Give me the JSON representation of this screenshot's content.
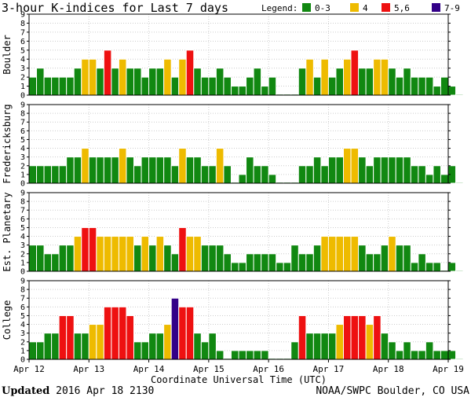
{
  "chart_data": {
    "type": "bar",
    "title": "3-hour K-indices for Last 7 days",
    "legend": {
      "label": "Legend:",
      "entries": [
        {
          "label": "0-3",
          "color": "#118811"
        },
        {
          "label": "4",
          "color": "#eebb00"
        },
        {
          "label": "5,6",
          "color": "#ee1111"
        },
        {
          "label": "7-9",
          "color": "#330088"
        }
      ]
    },
    "xlabel": "Coordinate Universal Time (UTC)",
    "x_ticks": [
      "Apr 12",
      "Apr 13",
      "Apr 14",
      "Apr 15",
      "Apr 16",
      "Apr 17",
      "Apr 18",
      "Apr 19"
    ],
    "ylim": [
      0,
      9
    ],
    "y_ticks": [
      "0",
      "1",
      "2",
      "3",
      "4",
      "5",
      "6",
      "7",
      "8",
      "9"
    ],
    "bars_per_day": 8,
    "grid": true,
    "series": [
      {
        "name": "Boulder",
        "values": [
          2,
          3,
          2,
          2,
          2,
          2,
          3,
          4,
          4,
          3,
          5,
          3,
          4,
          3,
          3,
          2,
          3,
          3,
          4,
          2,
          4,
          5,
          3,
          2,
          2,
          3,
          2,
          1,
          1,
          2,
          3,
          1,
          2,
          0,
          0,
          0,
          3,
          4,
          2,
          4,
          2,
          3,
          4,
          5,
          3,
          3,
          4,
          4,
          3,
          2,
          3,
          2,
          2,
          2,
          1,
          2,
          1,
          0
        ]
      },
      {
        "name": "Fredericksburg",
        "values": [
          2,
          2,
          2,
          2,
          2,
          3,
          3,
          4,
          3,
          3,
          3,
          3,
          4,
          3,
          2,
          3,
          3,
          3,
          3,
          2,
          4,
          3,
          3,
          2,
          2,
          4,
          2,
          0,
          1,
          3,
          2,
          2,
          1,
          0,
          0,
          0,
          2,
          2,
          3,
          2,
          3,
          3,
          4,
          4,
          3,
          2,
          3,
          3,
          3,
          3,
          3,
          2,
          2,
          1,
          2,
          1,
          2,
          0
        ]
      },
      {
        "name": "Est. Planetary",
        "values": [
          3,
          3,
          2,
          2,
          3,
          3,
          4,
          5,
          5,
          4,
          4,
          4,
          4,
          4,
          3,
          4,
          3,
          4,
          3,
          2,
          5,
          4,
          4,
          3,
          3,
          3,
          2,
          1,
          1,
          2,
          2,
          2,
          2,
          1,
          1,
          3,
          2,
          2,
          3,
          4,
          4,
          4,
          4,
          4,
          3,
          2,
          2,
          3,
          4,
          3,
          3,
          1,
          2,
          1,
          1,
          0,
          1,
          0
        ]
      },
      {
        "name": "College",
        "values": [
          2,
          2,
          3,
          3,
          5,
          5,
          3,
          3,
          4,
          4,
          6,
          6,
          6,
          5,
          2,
          2,
          3,
          3,
          4,
          7,
          6,
          6,
          3,
          2,
          3,
          1,
          0,
          1,
          1,
          1,
          1,
          1,
          0,
          0,
          0,
          2,
          5,
          3,
          3,
          3,
          3,
          4,
          5,
          5,
          5,
          4,
          5,
          3,
          2,
          1,
          2,
          1,
          1,
          2,
          1,
          1,
          1,
          0
        ]
      }
    ]
  },
  "footer": {
    "updated_label": "Updated",
    "updated_value": "2016 Apr 18 2130",
    "credit": "NOAA/SWPC Boulder, CO USA"
  }
}
